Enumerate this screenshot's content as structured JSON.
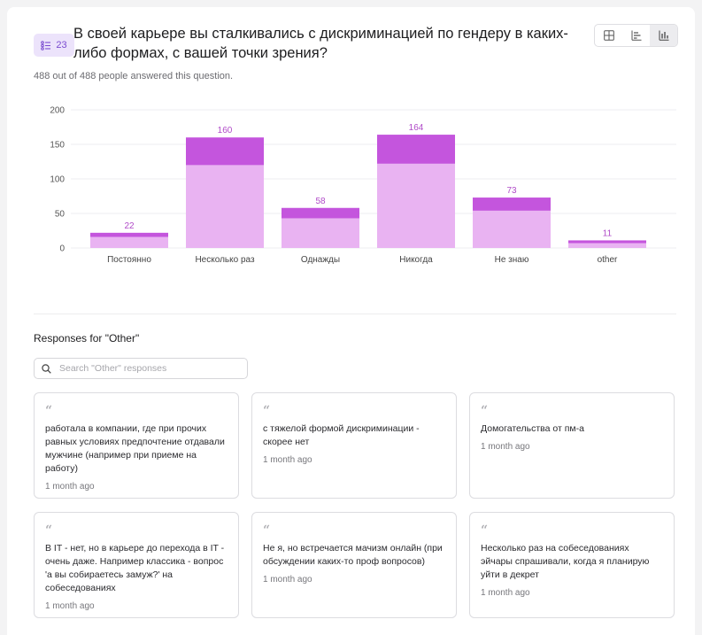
{
  "question": {
    "number": "23",
    "title": "В своей карьере вы сталкивались с дискриминацией по гендеру в каких-либо формах, с вашей точки зрения?",
    "answered": "488 out of 488 people answered this question."
  },
  "view_icons": [
    "grid-view-icon",
    "bar-horizontal-view-icon",
    "bar-vertical-view-icon"
  ],
  "chart_data": {
    "type": "bar",
    "stacked": true,
    "categories": [
      "Постоянно",
      "Несколько раз",
      "Однажды",
      "Никогда",
      "Не знаю",
      "other"
    ],
    "totals": [
      22,
      160,
      58,
      164,
      73,
      11
    ],
    "series": [
      {
        "values": [
          16,
          120,
          43,
          122,
          54,
          7
        ],
        "color": "#e9b3f2"
      },
      {
        "values": [
          6,
          40,
          15,
          42,
          19,
          4
        ],
        "color": "#c455dd"
      }
    ],
    "yticks": [
      0,
      50,
      100,
      150,
      200
    ],
    "ylim": [
      0,
      200
    ],
    "grid": true
  },
  "other": {
    "title": "Responses for \"Other\"",
    "search_placeholder": "Search \"Other\" responses",
    "responses": [
      {
        "text": "работала в компании, где при прочих равных условиях предпочтение отдавали мужчине (например при приеме на работу)",
        "time": "1 month ago"
      },
      {
        "text": "с тяжелой формой дискриминации - скорее нет",
        "time": "1 month ago"
      },
      {
        "text": "Домогательства от пм-а",
        "time": "1 month ago"
      },
      {
        "text": "В IT - нет, но в карьере до перехода в IT - очень даже. Например классика - вопрос 'а вы собираетесь замуж?' на собеседованиях",
        "time": "1 month ago"
      },
      {
        "text": "Не я, но встречается мачизм онлайн (при обсуждении каких-то проф вопросов)",
        "time": "1 month ago"
      },
      {
        "text": "Несколько раз на собеседованиях эйчары спрашивали, когда я планирую уйти в декрет",
        "time": "1 month ago"
      }
    ]
  }
}
